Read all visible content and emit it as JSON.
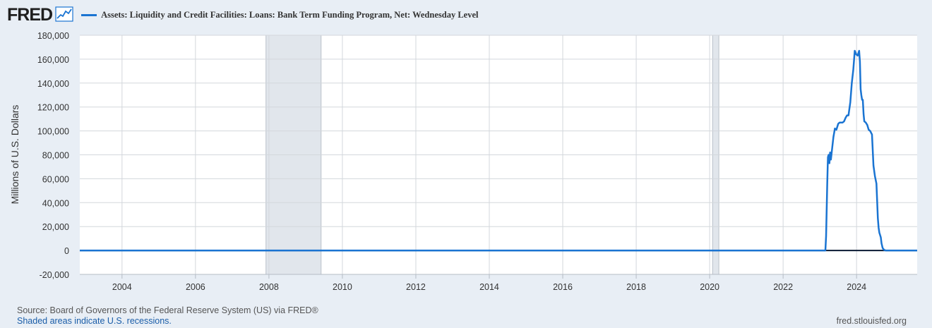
{
  "header": {
    "logo_text": "FRED",
    "logo_icon": "line-graph-icon",
    "series_label": "Assets: Liquidity and Credit Facilities: Loans: Bank Term Funding Program, Net: Wednesday Level"
  },
  "colors": {
    "series": "#1a74d2",
    "recession": "#e1e6ec",
    "zero_line": "#0a1a33",
    "background": "#e8eef5",
    "plot_bg": "#ffffff"
  },
  "footer": {
    "source": "Source: Board of Governors of the Federal Reserve System (US) via FRED®",
    "recession_note": "Shaded areas indicate U.S. recessions.",
    "site": "fred.stlouisfed.org"
  },
  "chart_data": {
    "type": "line",
    "title": "",
    "xlabel": "",
    "ylabel": "Millions of U.S. Dollars",
    "xlim": [
      2002.85,
      2025.65
    ],
    "ylim": [
      -20000,
      180000
    ],
    "grid": true,
    "legend": "top-left",
    "x_ticks": [
      "2004",
      "2006",
      "2008",
      "2010",
      "2012",
      "2014",
      "2016",
      "2018",
      "2020",
      "2022",
      "2024"
    ],
    "y_ticks": [
      "-20,000",
      "0",
      "20,000",
      "40,000",
      "60,000",
      "80,000",
      "100,000",
      "120,000",
      "140,000",
      "160,000",
      "180,000"
    ],
    "recessions": [
      [
        2007.92,
        2009.42
      ],
      [
        2020.08,
        2020.25
      ]
    ],
    "series": [
      {
        "name": "Assets: Liquidity and Credit Facilities: Loans: Bank Term Funding Program, Net: Wednesday Level",
        "x": [
          2002.85,
          2023.15,
          2023.17,
          2023.2,
          2023.22,
          2023.24,
          2023.26,
          2023.28,
          2023.3,
          2023.33,
          2023.37,
          2023.41,
          2023.45,
          2023.5,
          2023.54,
          2023.58,
          2023.62,
          2023.66,
          2023.7,
          2023.74,
          2023.78,
          2023.83,
          2023.87,
          2023.91,
          2023.95,
          2023.99,
          2024.03,
          2024.07,
          2024.09,
          2024.11,
          2024.13,
          2024.15,
          2024.17,
          2024.19,
          2024.21,
          2024.25,
          2024.27,
          2024.29,
          2024.33,
          2024.37,
          2024.42,
          2024.46,
          2024.5,
          2024.54,
          2024.58,
          2024.6,
          2024.62,
          2024.66,
          2024.68,
          2024.71,
          2024.75,
          2024.79,
          2024.83,
          2024.87,
          2024.91,
          2024.95,
          2025.0,
          2025.05,
          2025.65
        ],
        "values": [
          0,
          0,
          12000,
          55000,
          78000,
          80000,
          73000,
          82000,
          76000,
          84000,
          95000,
          102000,
          101000,
          106000,
          107000,
          107000,
          107000,
          108000,
          111000,
          113000,
          113000,
          124000,
          140000,
          151000,
          167000,
          164000,
          163000,
          167000,
          158000,
          135000,
          130000,
          126000,
          126000,
          114000,
          108000,
          107000,
          106000,
          105000,
          101000,
          100000,
          97000,
          71000,
          62000,
          56000,
          27000,
          19000,
          15000,
          11000,
          6000,
          2000,
          500,
          0,
          0,
          0,
          0,
          0,
          0,
          0,
          0
        ]
      }
    ]
  }
}
